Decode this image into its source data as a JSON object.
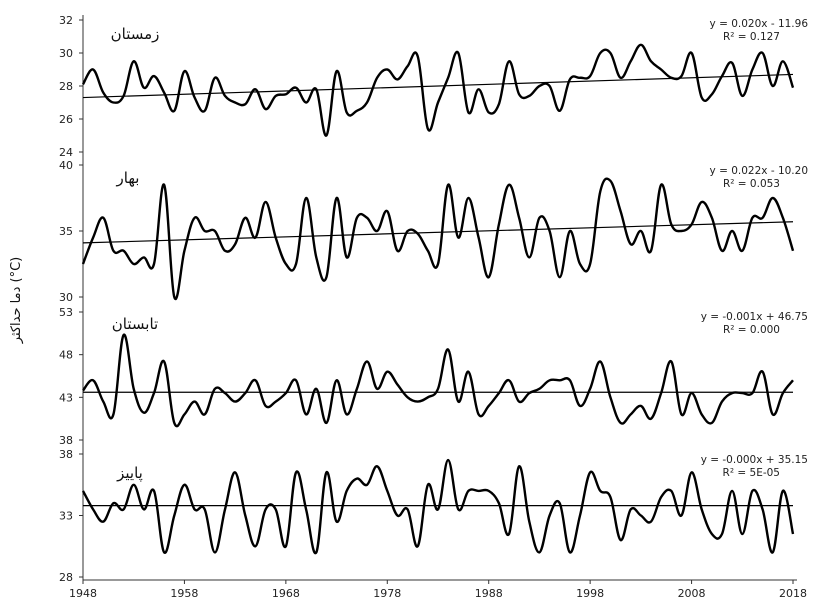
{
  "chart_data": {
    "type": "line",
    "ylabel": "دما حداکثر (°C)",
    "xticks": [
      "1948",
      "1958",
      "1968",
      "1978",
      "1988",
      "1998",
      "2008",
      "2018"
    ],
    "xlim": [
      1948,
      2018
    ],
    "panels": [
      {
        "season": "زمستان",
        "ylim": [
          24,
          32
        ],
        "yticks": [
          "32",
          "30",
          "28",
          "26",
          "24"
        ],
        "equation": "y = 0.020x - 11.96",
        "r2": "R² = 0.127",
        "trend": [
          27.3,
          28.7
        ],
        "x": [
          1948,
          1949,
          1950,
          1951,
          1952,
          1953,
          1954,
          1955,
          1956,
          1957,
          1958,
          1959,
          1960,
          1961,
          1962,
          1963,
          1964,
          1965,
          1966,
          1967,
          1968,
          1969,
          1970,
          1971,
          1972,
          1973,
          1974,
          1975,
          1976,
          1977,
          1978,
          1979,
          1980,
          1981,
          1982,
          1983,
          1984,
          1985,
          1986,
          1987,
          1988,
          1989,
          1990,
          1991,
          1992,
          1993,
          1994,
          1995,
          1996,
          1997,
          1998,
          1999,
          2000,
          2001,
          2002,
          2003,
          2004,
          2005,
          2006,
          2007,
          2008,
          2009,
          2010,
          2011,
          2012,
          2013,
          2014,
          2015,
          2016,
          2017,
          2018
        ],
        "values": [
          28.1,
          29.0,
          27.6,
          27.0,
          27.4,
          29.5,
          27.9,
          28.6,
          27.6,
          26.5,
          28.9,
          27.3,
          26.5,
          28.5,
          27.4,
          27.0,
          26.9,
          27.8,
          26.6,
          27.4,
          27.5,
          27.9,
          27.0,
          27.8,
          25.0,
          28.9,
          26.4,
          26.5,
          27.0,
          28.5,
          29.0,
          28.4,
          29.2,
          29.8,
          25.4,
          27.0,
          28.5,
          30.0,
          26.4,
          27.8,
          26.4,
          26.9,
          29.5,
          27.5,
          27.4,
          28.0,
          28.0,
          26.5,
          28.4,
          28.5,
          28.6,
          30.0,
          30.0,
          28.5,
          29.5,
          30.5,
          29.5,
          29.0,
          28.5,
          28.6,
          30.0,
          27.3,
          27.5,
          28.6,
          29.4,
          27.4,
          29.0,
          30.0,
          28.0,
          29.5,
          27.9
        ]
      },
      {
        "season": "بهار",
        "ylim": [
          30,
          40
        ],
        "yticks": [
          "40",
          "35",
          "30"
        ],
        "equation": "y = 0.022x - 10.20",
        "r2": "R² = 0.053",
        "trend": [
          34.1,
          35.7
        ],
        "x": [
          1948,
          1949,
          1950,
          1951,
          1952,
          1953,
          1954,
          1955,
          1956,
          1957,
          1958,
          1959,
          1960,
          1961,
          1962,
          1963,
          1964,
          1965,
          1966,
          1967,
          1968,
          1969,
          1970,
          1971,
          1972,
          1973,
          1974,
          1975,
          1976,
          1977,
          1978,
          1979,
          1980,
          1981,
          1982,
          1983,
          1984,
          1985,
          1986,
          1987,
          1988,
          1989,
          1990,
          1991,
          1992,
          1993,
          1994,
          1995,
          1996,
          1997,
          1998,
          1999,
          2000,
          2001,
          2002,
          2003,
          2004,
          2005,
          2006,
          2007,
          2008,
          2009,
          2010,
          2011,
          2012,
          2013,
          2014,
          2015,
          2016,
          2017,
          2018
        ],
        "values": [
          32.5,
          34.5,
          36.0,
          33.5,
          33.5,
          32.5,
          33.0,
          32.5,
          38.5,
          30.0,
          33.5,
          36.0,
          35.0,
          35.0,
          33.5,
          34.0,
          36.0,
          34.5,
          37.2,
          34.5,
          32.5,
          32.5,
          37.5,
          33.0,
          31.5,
          37.5,
          33.0,
          36.0,
          36.0,
          35.0,
          36.5,
          33.5,
          35.0,
          34.8,
          33.5,
          32.5,
          38.5,
          34.5,
          37.5,
          34.5,
          31.5,
          35.5,
          38.5,
          36.0,
          33.0,
          36.0,
          35.0,
          31.5,
          35.0,
          32.5,
          32.5,
          38.0,
          38.8,
          36.5,
          34.0,
          35.0,
          33.5,
          38.5,
          35.5,
          35.0,
          35.5,
          37.2,
          36.0,
          33.5,
          35.0,
          33.5,
          36.0,
          36.0,
          37.5,
          36.0,
          33.5
        ]
      },
      {
        "season": "تابستان",
        "ylim": [
          38,
          53
        ],
        "yticks": [
          "53",
          "48",
          "43",
          "38"
        ],
        "equation": "y = -0.001x + 46.75",
        "r2": "R² = 0.000",
        "trend": [
          43.6,
          43.6
        ],
        "x": [
          1948,
          1949,
          1950,
          1951,
          1952,
          1953,
          1954,
          1955,
          1956,
          1957,
          1958,
          1959,
          1960,
          1961,
          1962,
          1963,
          1964,
          1965,
          1966,
          1967,
          1968,
          1969,
          1970,
          1971,
          1972,
          1973,
          1974,
          1975,
          1976,
          1977,
          1978,
          1979,
          1980,
          1981,
          1982,
          1983,
          1984,
          1985,
          1986,
          1987,
          1988,
          1989,
          1990,
          1991,
          1992,
          1993,
          1994,
          1995,
          1996,
          1997,
          1998,
          1999,
          2000,
          2001,
          2002,
          2003,
          2004,
          2005,
          2006,
          2007,
          2008,
          2009,
          2010,
          2011,
          2012,
          2013,
          2014,
          2015,
          2016,
          2017,
          2018
        ],
        "values": [
          43.8,
          45.0,
          42.5,
          41.0,
          50.3,
          44.0,
          41.2,
          43.5,
          47.2,
          40.0,
          41.0,
          42.5,
          41.0,
          44.0,
          43.5,
          42.5,
          43.5,
          45.0,
          42.0,
          42.5,
          43.5,
          45.0,
          41.0,
          44.0,
          40.0,
          45.0,
          41.0,
          44.0,
          47.2,
          44.0,
          46.0,
          44.5,
          43.0,
          42.5,
          43.0,
          44.0,
          48.6,
          42.5,
          46.0,
          41.0,
          42.0,
          43.5,
          45.0,
          42.5,
          43.5,
          44.0,
          45.0,
          45.0,
          45.0,
          42.0,
          44.0,
          47.2,
          43.0,
          40.0,
          41.0,
          42.0,
          40.5,
          43.5,
          47.2,
          41.0,
          43.5,
          41.0,
          40.0,
          42.5,
          43.5,
          43.5,
          43.5,
          46.0,
          41.0,
          43.5,
          45.0
        ]
      },
      {
        "season": "پاییز",
        "ylim": [
          28,
          38
        ],
        "yticks": [
          "38",
          "33",
          "28"
        ],
        "equation": "y = -0.000x + 35.15",
        "r2": "R² = 5E-05",
        "trend": [
          33.8,
          33.8
        ],
        "x": [
          1948,
          1949,
          1950,
          1951,
          1952,
          1953,
          1954,
          1955,
          1956,
          1957,
          1958,
          1959,
          1960,
          1961,
          1962,
          1963,
          1964,
          1965,
          1966,
          1967,
          1968,
          1969,
          1970,
          1971,
          1972,
          1973,
          1974,
          1975,
          1976,
          1977,
          1978,
          1979,
          1980,
          1981,
          1982,
          1983,
          1984,
          1985,
          1986,
          1987,
          1988,
          1989,
          1990,
          1991,
          1992,
          1993,
          1994,
          1995,
          1996,
          1997,
          1998,
          1999,
          2000,
          2001,
          2002,
          2003,
          2004,
          2005,
          2006,
          2007,
          2008,
          2009,
          2010,
          2011,
          2012,
          2013,
          2014,
          2015,
          2016,
          2017,
          2018
        ],
        "values": [
          35.0,
          33.5,
          32.5,
          34.0,
          33.5,
          35.5,
          33.5,
          35.0,
          30.0,
          33.0,
          35.5,
          33.5,
          33.5,
          30.0,
          33.5,
          36.5,
          33.0,
          30.5,
          33.5,
          33.5,
          30.5,
          36.5,
          33.5,
          30.0,
          36.5,
          32.5,
          35.0,
          36.0,
          35.5,
          37.0,
          35.0,
          33.0,
          33.5,
          30.5,
          35.5,
          33.5,
          37.5,
          33.5,
          35.0,
          35.0,
          35.0,
          34.0,
          31.5,
          37.0,
          32.5,
          30.0,
          33.0,
          34.0,
          30.0,
          33.0,
          36.5,
          35.0,
          34.5,
          31.0,
          33.5,
          33.0,
          32.5,
          34.5,
          35.0,
          33.0,
          36.5,
          33.5,
          31.5,
          31.5,
          35.0,
          31.5,
          35.0,
          33.5,
          30.0,
          35.0,
          31.5
        ]
      }
    ]
  }
}
